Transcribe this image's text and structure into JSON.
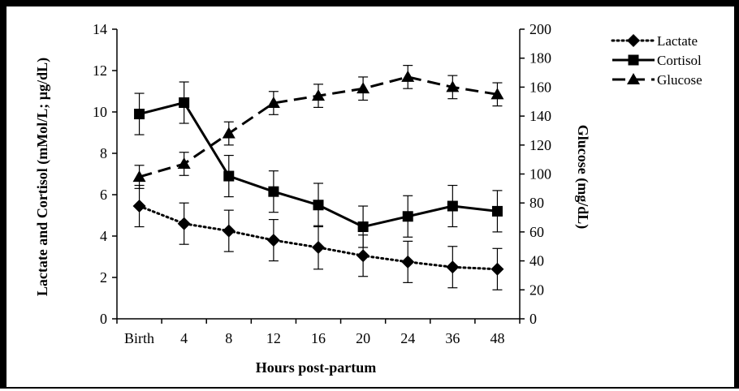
{
  "chart_data": {
    "type": "line",
    "title": "",
    "xlabel": "Hours post-partum",
    "ylabel_left": "Lactate and Cortisol (mMol/L; µg/dL)",
    "ylabel_right": "Glucose (mg/dL)",
    "categories": [
      "Birth",
      "4",
      "8",
      "12",
      "16",
      "20",
      "24",
      "36",
      "48"
    ],
    "ylim_left": [
      0,
      14
    ],
    "yticks_left": [
      "0",
      "2",
      "4",
      "6",
      "8",
      "10",
      "12",
      "14"
    ],
    "ylim_right": [
      0,
      200
    ],
    "yticks_right": [
      "0",
      "20",
      "40",
      "60",
      "80",
      "100",
      "120",
      "140",
      "160",
      "180",
      "200"
    ],
    "legend_position": "top-right",
    "grid": false,
    "series": [
      {
        "name": "Lactate",
        "axis": "left",
        "marker": "diamond",
        "line_style": "dotted",
        "values": [
          5.45,
          4.6,
          4.25,
          3.8,
          3.45,
          3.05,
          2.75,
          2.5,
          2.4
        ],
        "error": [
          1.0,
          1.0,
          1.0,
          1.0,
          1.05,
          1.0,
          1.0,
          1.0,
          1.0
        ]
      },
      {
        "name": "Cortisol",
        "axis": "left",
        "marker": "square",
        "line_style": "solid",
        "values": [
          9.9,
          10.45,
          6.9,
          6.15,
          5.5,
          4.45,
          4.95,
          5.45,
          5.2
        ],
        "error": [
          1.0,
          1.0,
          1.0,
          1.0,
          1.05,
          1.0,
          1.0,
          1.0,
          1.0
        ]
      },
      {
        "name": "Glucose",
        "axis": "right",
        "marker": "triangle",
        "line_style": "dashed",
        "values": [
          98,
          107,
          128,
          149,
          154,
          159,
          167,
          160,
          155
        ],
        "error": [
          8,
          8,
          8,
          8,
          8,
          8,
          8,
          8,
          8
        ]
      }
    ]
  }
}
